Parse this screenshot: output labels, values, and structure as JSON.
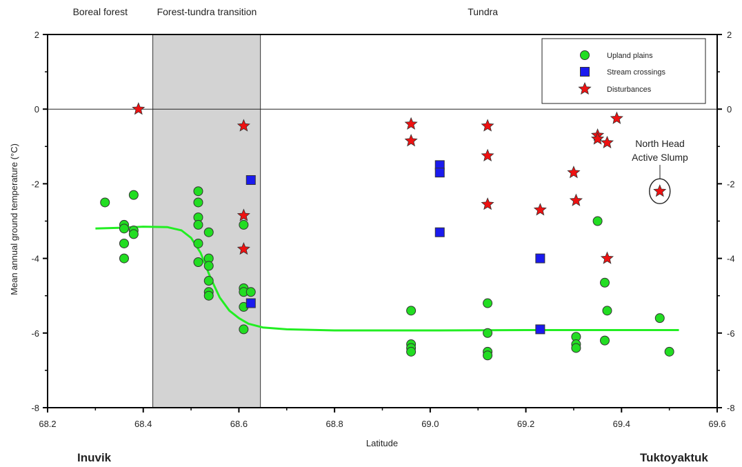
{
  "chart_data": {
    "type": "scatter",
    "xlabel": "Latitude",
    "ylabel": "Mean annual ground temperature (°C)",
    "xlim": [
      68.2,
      69.6
    ],
    "ylim": [
      -8,
      2
    ],
    "x_ticks": [
      "68.2",
      "68.4",
      "68.6",
      "68.8",
      "69.0",
      "69.2",
      "69.4",
      "69.6"
    ],
    "y_ticks": [
      "2",
      "0",
      "-2",
      "-4",
      "-6",
      "-8"
    ],
    "zones": [
      {
        "label": "Boreal forest",
        "x_center": 68.31
      },
      {
        "label": "Forest-tundra transition",
        "x_center": 68.533,
        "shaded_range": [
          68.42,
          68.645
        ],
        "shade_color": "#d3d3d3"
      },
      {
        "label": "Tundra",
        "x_center": 69.11
      }
    ],
    "places": {
      "left": "Inuvik",
      "right": "Tuktoyaktuk"
    },
    "legend_position": "top-right",
    "series": [
      {
        "name": "Upland plains",
        "marker": "circle",
        "color": "#22dd22",
        "points": [
          [
            68.32,
            -2.5
          ],
          [
            68.36,
            -3.1
          ],
          [
            68.36,
            -3.2
          ],
          [
            68.36,
            -3.6
          ],
          [
            68.36,
            -4.0
          ],
          [
            68.38,
            -2.3
          ],
          [
            68.38,
            -3.25
          ],
          [
            68.38,
            -3.35
          ],
          [
            68.515,
            -2.2
          ],
          [
            68.515,
            -2.5
          ],
          [
            68.515,
            -2.9
          ],
          [
            68.515,
            -3.1
          ],
          [
            68.515,
            -3.6
          ],
          [
            68.515,
            -4.1
          ],
          [
            68.537,
            -3.3
          ],
          [
            68.537,
            -4.0
          ],
          [
            68.537,
            -4.2
          ],
          [
            68.537,
            -4.6
          ],
          [
            68.537,
            -4.9
          ],
          [
            68.537,
            -5.0
          ],
          [
            68.61,
            -3.1
          ],
          [
            68.61,
            -4.8
          ],
          [
            68.61,
            -4.9
          ],
          [
            68.61,
            -5.3
          ],
          [
            68.61,
            -5.9
          ],
          [
            68.625,
            -4.9
          ],
          [
            68.96,
            -5.4
          ],
          [
            68.96,
            -6.3
          ],
          [
            68.96,
            -6.4
          ],
          [
            68.96,
            -6.5
          ],
          [
            69.12,
            -5.2
          ],
          [
            69.12,
            -6.0
          ],
          [
            69.12,
            -6.5
          ],
          [
            69.12,
            -6.6
          ],
          [
            69.305,
            -6.1
          ],
          [
            69.305,
            -6.3
          ],
          [
            69.305,
            -6.4
          ],
          [
            69.35,
            -3.0
          ],
          [
            69.365,
            -4.65
          ],
          [
            69.365,
            -6.2
          ],
          [
            69.37,
            -5.4
          ],
          [
            69.48,
            -5.6
          ],
          [
            69.5,
            -6.5
          ]
        ]
      },
      {
        "name": "Stream crossings",
        "marker": "square",
        "color": "#1a1aee",
        "points": [
          [
            68.625,
            -1.9
          ],
          [
            68.625,
            -5.2
          ],
          [
            69.02,
            -1.5
          ],
          [
            69.02,
            -1.7
          ],
          [
            69.02,
            -3.3
          ],
          [
            69.23,
            -4.0
          ],
          [
            69.23,
            -5.9
          ]
        ]
      },
      {
        "name": "Disturbances",
        "marker": "star",
        "color": "#ee1111",
        "points": [
          [
            68.39,
            0.0
          ],
          [
            68.61,
            -0.45
          ],
          [
            68.61,
            -2.85
          ],
          [
            68.61,
            -3.75
          ],
          [
            68.96,
            -0.4
          ],
          [
            68.96,
            -0.85
          ],
          [
            69.12,
            -0.45
          ],
          [
            69.12,
            -1.25
          ],
          [
            69.12,
            -2.55
          ],
          [
            69.23,
            -2.7
          ],
          [
            69.3,
            -1.7
          ],
          [
            69.305,
            -2.45
          ],
          [
            69.35,
            -0.7
          ],
          [
            69.35,
            -0.8
          ],
          [
            69.37,
            -0.9
          ],
          [
            69.37,
            -4.0
          ],
          [
            69.39,
            -0.25
          ],
          [
            69.48,
            -2.2
          ]
        ]
      }
    ],
    "fit_curve": {
      "color": "#22ee22",
      "points": [
        [
          68.3,
          -3.2
        ],
        [
          68.35,
          -3.18
        ],
        [
          68.4,
          -3.15
        ],
        [
          68.45,
          -3.16
        ],
        [
          68.48,
          -3.25
        ],
        [
          68.5,
          -3.45
        ],
        [
          68.52,
          -3.85
        ],
        [
          68.54,
          -4.5
        ],
        [
          68.56,
          -5.05
        ],
        [
          68.58,
          -5.4
        ],
        [
          68.6,
          -5.6
        ],
        [
          68.62,
          -5.75
        ],
        [
          68.65,
          -5.85
        ],
        [
          68.7,
          -5.9
        ],
        [
          68.8,
          -5.93
        ],
        [
          69.0,
          -5.93
        ],
        [
          69.2,
          -5.92
        ],
        [
          69.4,
          -5.92
        ],
        [
          69.52,
          -5.92
        ]
      ]
    },
    "annotation": {
      "line1": "North Head",
      "line2": "Active Slump",
      "x": 69.48,
      "y": -2.2
    }
  }
}
